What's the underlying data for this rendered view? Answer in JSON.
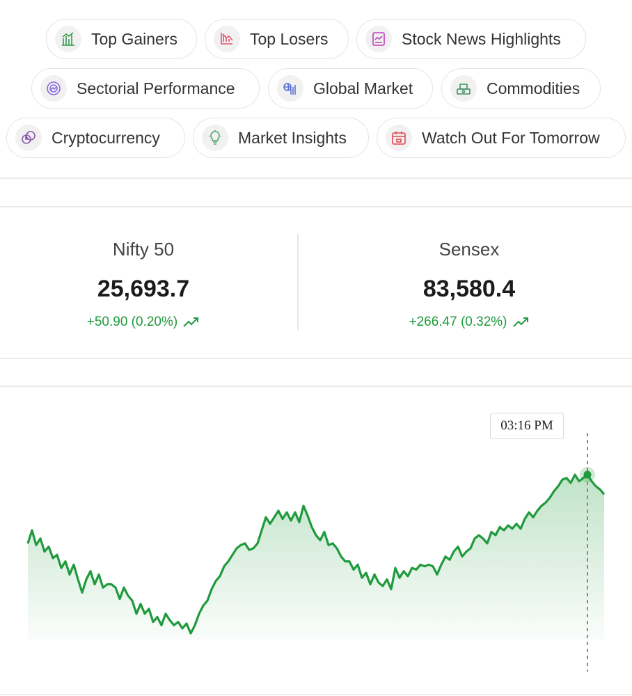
{
  "chips": [
    {
      "label": "Top Gainers",
      "icon": "top-gainers-icon",
      "color": "#2e9a4a"
    },
    {
      "label": "Top Losers",
      "icon": "top-losers-icon",
      "color": "#e0556a"
    },
    {
      "label": "Stock News Highlights",
      "icon": "stock-news-icon",
      "color": "#c23dbd"
    },
    {
      "label": "Sectorial Performance",
      "icon": "sectorial-performance-icon",
      "color": "#8a6be0"
    },
    {
      "label": "Global Market",
      "icon": "global-market-icon",
      "color": "#5a6fd8"
    },
    {
      "label": "Commodities",
      "icon": "commodities-icon",
      "color": "#3f8f5a"
    },
    {
      "label": "Cryptocurrency",
      "icon": "cryptocurrency-icon",
      "color": "#8a5aa8"
    },
    {
      "label": "Market Insights",
      "icon": "market-insights-icon",
      "color": "#4aa56a"
    },
    {
      "label": "Watch Out For Tomorrow",
      "icon": "watch-out-calendar-icon",
      "color": "#e0474c"
    }
  ],
  "indices": [
    {
      "name": "Nifty 50",
      "value": "25,693.7",
      "change": "+50.90 (0.20%)"
    },
    {
      "name": "Sensex",
      "value": "83,580.4",
      "change": "+266.47 (0.32%)"
    }
  ],
  "chart_data": {
    "type": "area",
    "series": [
      {
        "values": [
          0.55,
          0.63,
          0.54,
          0.58,
          0.5,
          0.53,
          0.46,
          0.48,
          0.4,
          0.44,
          0.36,
          0.42,
          0.33,
          0.25,
          0.33,
          0.38,
          0.3,
          0.36,
          0.28,
          0.3,
          0.3,
          0.28,
          0.21,
          0.28,
          0.23,
          0.2,
          0.12,
          0.18,
          0.12,
          0.15,
          0.07,
          0.1,
          0.05,
          0.12,
          0.08,
          0.05,
          0.07,
          0.03,
          0.06,
          0.0,
          0.05,
          0.12,
          0.17,
          0.2,
          0.27,
          0.32,
          0.35,
          0.41,
          0.44,
          0.48,
          0.52,
          0.54,
          0.55,
          0.51,
          0.52,
          0.55,
          0.63,
          0.71,
          0.67,
          0.71,
          0.75,
          0.7,
          0.74,
          0.69,
          0.74,
          0.68,
          0.78,
          0.72,
          0.65,
          0.6,
          0.57,
          0.62,
          0.54,
          0.55,
          0.52,
          0.47,
          0.44,
          0.44,
          0.39,
          0.42,
          0.34,
          0.37,
          0.3,
          0.36,
          0.31,
          0.29,
          0.33,
          0.27,
          0.4,
          0.34,
          0.38,
          0.35,
          0.4,
          0.39,
          0.42,
          0.41,
          0.42,
          0.41,
          0.36,
          0.42,
          0.47,
          0.45,
          0.5,
          0.53,
          0.47,
          0.5,
          0.52,
          0.58,
          0.6,
          0.58,
          0.55,
          0.62,
          0.6,
          0.65,
          0.63,
          0.66,
          0.64,
          0.67,
          0.64,
          0.7,
          0.74,
          0.71,
          0.75,
          0.78,
          0.8,
          0.83,
          0.87,
          0.9,
          0.94,
          0.95,
          0.92,
          0.97,
          0.93,
          0.95,
          0.97,
          0.93,
          0.9,
          0.88,
          0.85
        ]
      }
    ]
  },
  "tooltip": {
    "time": "03:16 PM"
  },
  "colors": {
    "line": "#1f9a3c",
    "change_positive": "#1f9a3c"
  }
}
